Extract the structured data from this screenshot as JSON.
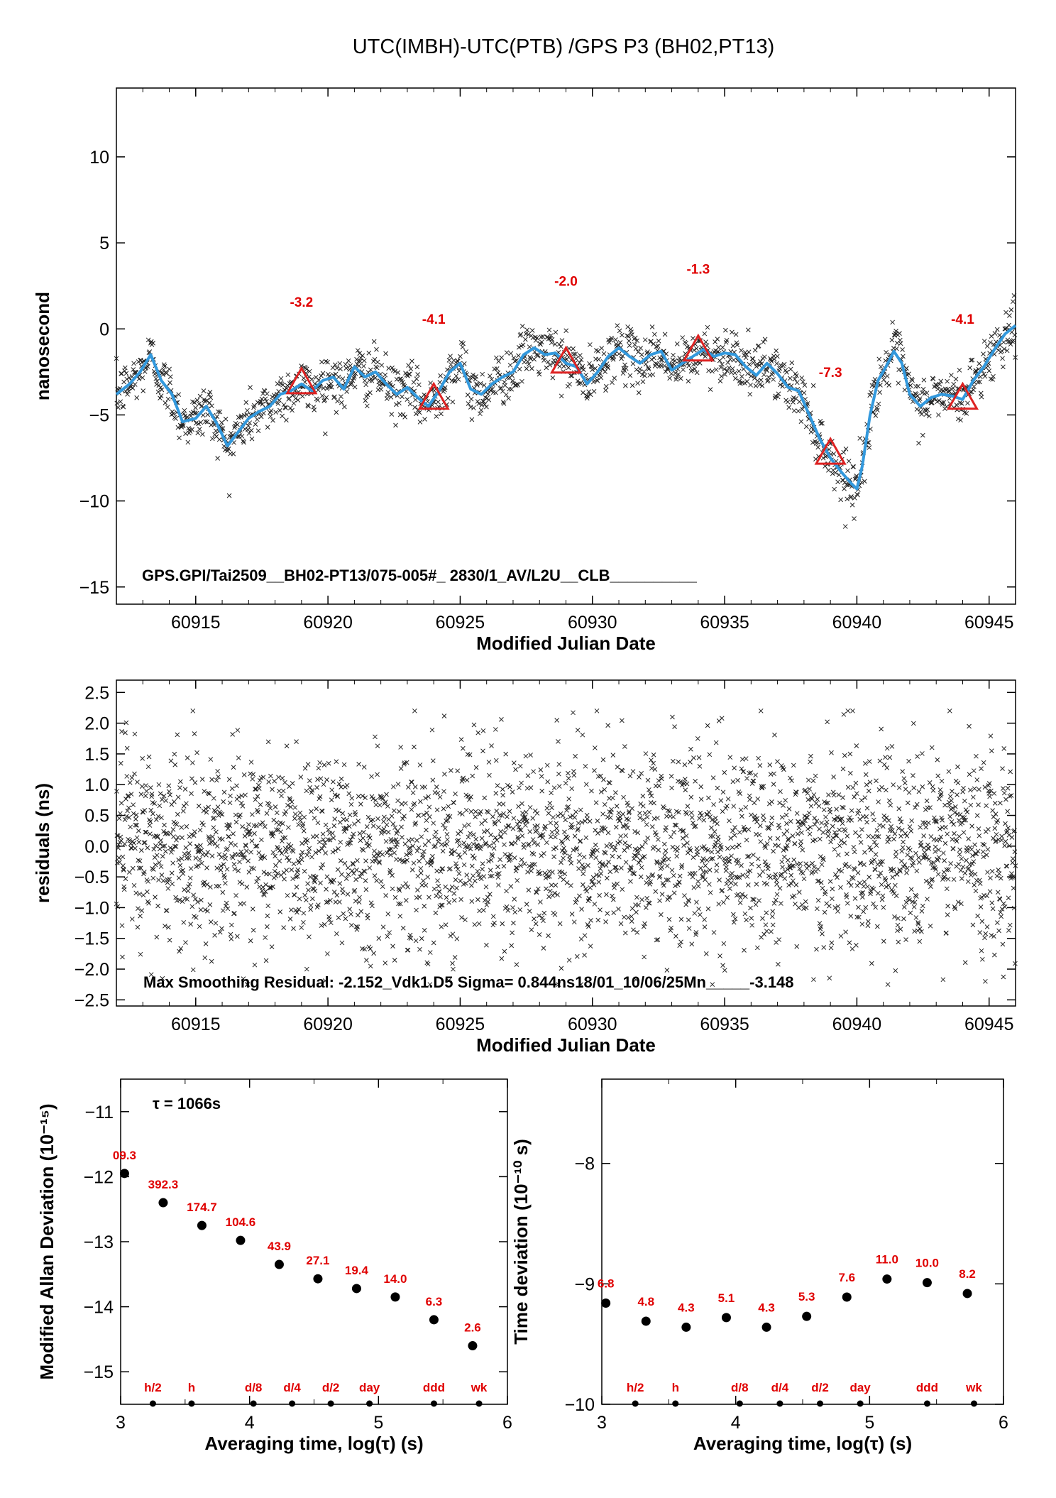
{
  "title": "UTC(IMBH)-UTC(PTB)  /GPS  P3  (BH02,PT13)",
  "colors": {
    "smooth": "#3399dd",
    "marker": "#dd2222",
    "label": "#e00000",
    "points": "#222222"
  },
  "chart_data": [
    {
      "name": "time-series",
      "type": "scatter",
      "xlabel": "Modified Julian Date",
      "ylabel": "nanosecond",
      "xlim": [
        60912,
        60946
      ],
      "ylim": [
        -16,
        14
      ],
      "xticks": [
        60915,
        60920,
        60925,
        60930,
        60935,
        60940,
        60945
      ],
      "yticks": [
        -15,
        -10,
        -5,
        0,
        5,
        10
      ],
      "annotation": "GPS.GPI/Tai2509__BH02-PT13/075-005#_  2830/1_AV/L2U__CLB__________",
      "smooth_curve": {
        "x": [
          60912.0,
          60912.5,
          60912.9,
          60913.3,
          60913.7,
          60914.1,
          60914.5,
          60915.0,
          60915.4,
          60915.8,
          60916.2,
          60916.6,
          60917.0,
          60917.4,
          60917.8,
          60918.2,
          60918.6,
          60919.0,
          60919.4,
          60919.8,
          60920.2,
          60920.6,
          60921.0,
          60921.4,
          60921.8,
          60922.2,
          60922.6,
          60923.0,
          60923.4,
          60923.8,
          60924.2,
          60924.6,
          60925.0,
          60925.4,
          60925.8,
          60926.2,
          60926.6,
          60927.0,
          60927.4,
          60927.8,
          60928.2,
          60928.6,
          60929.0,
          60929.4,
          60929.8,
          60930.2,
          60930.6,
          60931.0,
          60931.4,
          60931.8,
          60932.2,
          60932.6,
          60933.0,
          60933.4,
          60933.8,
          60934.2,
          60934.6,
          60935.0,
          60935.4,
          60935.8,
          60936.2,
          60936.6,
          60937.0,
          60937.4,
          60937.8,
          60938.2,
          60938.6,
          60939.0,
          60939.4,
          60939.8,
          60940.0,
          60940.2,
          60940.5,
          60940.8,
          60941.1,
          60941.4,
          60941.7,
          60942.0,
          60942.4,
          60942.8,
          60943.2,
          60943.6,
          60944.0,
          60944.4,
          60944.8,
          60945.2,
          60945.6,
          60946.0
        ],
        "y": [
          -3.8,
          -3.2,
          -2.5,
          -1.5,
          -3.0,
          -3.8,
          -5.4,
          -5.2,
          -4.5,
          -5.5,
          -6.8,
          -6.0,
          -5.2,
          -4.8,
          -4.5,
          -3.8,
          -3.6,
          -3.2,
          -3.6,
          -3.0,
          -2.8,
          -3.5,
          -2.2,
          -2.8,
          -2.5,
          -3.2,
          -3.8,
          -3.4,
          -4.0,
          -4.5,
          -3.6,
          -2.5,
          -2.0,
          -3.5,
          -3.8,
          -3.2,
          -2.8,
          -2.5,
          -1.5,
          -1.1,
          -1.5,
          -1.4,
          -2.0,
          -2.2,
          -3.2,
          -2.5,
          -1.6,
          -1.1,
          -1.6,
          -2.0,
          -1.5,
          -1.3,
          -2.4,
          -2.0,
          -1.6,
          -1.2,
          -1.6,
          -1.4,
          -1.5,
          -2.2,
          -2.7,
          -2.0,
          -2.6,
          -3.4,
          -3.6,
          -5.0,
          -6.4,
          -7.5,
          -8.3,
          -9.0,
          -9.3,
          -8.0,
          -5.0,
          -3.0,
          -2.2,
          -1.3,
          -2.0,
          -3.8,
          -4.5,
          -4.0,
          -3.8,
          -3.9,
          -4.1,
          -3.0,
          -2.2,
          -1.2,
          -0.3,
          0.2
        ]
      },
      "markers": [
        {
          "x": 60919.0,
          "y": -3.2,
          "label": "-3.2"
        },
        {
          "x": 60924.0,
          "y": -4.1,
          "label": "-4.1"
        },
        {
          "x": 60929.0,
          "y": -2.0,
          "label": "-2.0"
        },
        {
          "x": 60934.0,
          "y": -1.3,
          "label": "-1.3"
        },
        {
          "x": 60939.0,
          "y": -7.3,
          "label": "-7.3"
        },
        {
          "x": 60944.0,
          "y": -4.1,
          "label": "-4.1"
        }
      ],
      "marker_label_y": [
        1.3,
        0.3,
        2.5,
        3.2,
        -2.8,
        0.3
      ]
    },
    {
      "name": "residuals",
      "type": "scatter",
      "xlabel": "Modified Julian Date",
      "ylabel": "residuals (ns)",
      "xlim": [
        60912,
        60946
      ],
      "ylim": [
        -2.6,
        2.7
      ],
      "xticks": [
        60915,
        60920,
        60925,
        60930,
        60935,
        60940,
        60945
      ],
      "yticks": [
        -2.5,
        -2.0,
        -1.5,
        -1.0,
        -0.5,
        0.0,
        0.5,
        1.0,
        1.5,
        2.0,
        2.5
      ],
      "ytick_labels": [
        "−2.5",
        "−2.0",
        "−1.5",
        "−1.0",
        "−0.5",
        "0.0",
        "0.5",
        "1.0",
        "1.5",
        "2.0",
        "2.5"
      ],
      "annotation": "Max Smoothing Residual: -2.152_Vdk1.D5  Sigma= 0.844ns18/01_10/06/25Mn_____-3.148"
    },
    {
      "name": "modified-allan-deviation",
      "type": "scatter",
      "xlabel": "Averaging time, log(τ) (s)",
      "ylabel": "Modified Allan Deviation (10⁻¹⁵)",
      "xlim": [
        3,
        6
      ],
      "ylim": [
        -15.5,
        -10.5
      ],
      "xticks": [
        3,
        4,
        5,
        6
      ],
      "yticks": [
        -15,
        -14,
        -13,
        -12,
        -11
      ],
      "tau_note": "τ = 1066s",
      "x": [
        3.03,
        3.33,
        3.63,
        3.93,
        4.23,
        4.53,
        4.83,
        5.13,
        5.43,
        5.73
      ],
      "y": [
        -11.95,
        -12.4,
        -12.75,
        -12.98,
        -13.35,
        -13.57,
        -13.72,
        -13.85,
        -14.2,
        -14.6
      ],
      "labels": [
        "09.3",
        "392.3",
        "174.7",
        "104.6",
        "43.9",
        "27.1",
        "19.4",
        "14.0",
        "6.3",
        "2.6"
      ],
      "period_labels": [
        {
          "x": 3.25,
          "label": "h/2"
        },
        {
          "x": 3.55,
          "label": "h"
        },
        {
          "x": 4.03,
          "label": "d/8"
        },
        {
          "x": 4.33,
          "label": "d/4"
        },
        {
          "x": 4.63,
          "label": "d/2"
        },
        {
          "x": 4.93,
          "label": "day"
        },
        {
          "x": 5.43,
          "label": "ddd"
        },
        {
          "x": 5.78,
          "label": "wk"
        }
      ]
    },
    {
      "name": "time-deviation",
      "type": "scatter",
      "xlabel": "Averaging time, log(τ) (s)",
      "ylabel": "Time deviation (10⁻¹⁰ s)",
      "xlim": [
        3,
        6
      ],
      "ylim": [
        -10,
        -7.3
      ],
      "xticks": [
        3,
        4,
        5,
        6
      ],
      "yticks": [
        -10,
        -9,
        -8
      ],
      "x": [
        3.03,
        3.33,
        3.63,
        3.93,
        4.23,
        4.53,
        4.83,
        5.13,
        5.43,
        5.73
      ],
      "y": [
        -9.16,
        -9.31,
        -9.36,
        -9.28,
        -9.36,
        -9.27,
        -9.11,
        -8.96,
        -8.99,
        -9.08
      ],
      "labels": [
        "6.8",
        "4.8",
        "4.3",
        "5.1",
        "4.3",
        "5.3",
        "7.6",
        "11.0",
        "10.0",
        "8.2"
      ],
      "period_labels": [
        {
          "x": 3.25,
          "label": "h/2"
        },
        {
          "x": 3.55,
          "label": "h"
        },
        {
          "x": 4.03,
          "label": "d/8"
        },
        {
          "x": 4.33,
          "label": "d/4"
        },
        {
          "x": 4.63,
          "label": "d/2"
        },
        {
          "x": 4.93,
          "label": "day"
        },
        {
          "x": 5.43,
          "label": "ddd"
        },
        {
          "x": 5.78,
          "label": "wk"
        }
      ]
    }
  ]
}
